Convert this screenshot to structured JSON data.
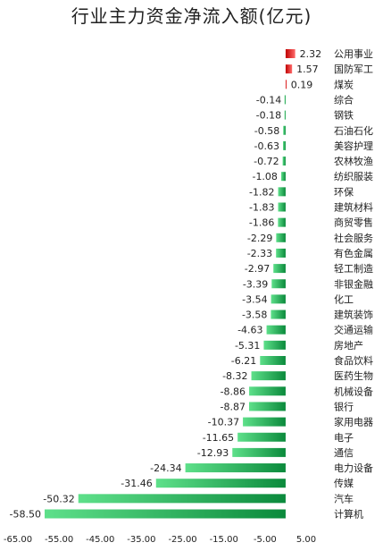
{
  "chart_data": {
    "type": "bar",
    "orientation": "horizontal",
    "title": "行业主力资金净流入额(亿元)",
    "xlabel": "",
    "ylabel": "",
    "xlim": [
      -65,
      5
    ],
    "x_ticks": [
      -65,
      -55,
      -45,
      -35,
      -25,
      -15,
      -5,
      5
    ],
    "x_tick_labels": [
      "-65.00",
      "-55.00",
      "-45.00",
      "-35.00",
      "-25.00",
      "-15.00",
      "-5.00",
      "5.00"
    ],
    "grid": false,
    "legend": "none",
    "categories": [
      "公用事业",
      "国防军工",
      "煤炭",
      "综合",
      "钢铁",
      "石油石化",
      "美容护理",
      "农林牧渔",
      "纺织服装",
      "环保",
      "建筑材料",
      "商贸零售",
      "社会服务",
      "有色金属",
      "轻工制造",
      "非银金融",
      "化工",
      "建筑装饰",
      "交通运输",
      "房地产",
      "食品饮料",
      "医药生物",
      "机械设备",
      "银行",
      "家用电器",
      "电子",
      "通信",
      "电力设备",
      "传媒",
      "汽车",
      "计算机"
    ],
    "values": [
      2.32,
      1.57,
      0.19,
      -0.14,
      -0.18,
      -0.58,
      -0.63,
      -0.72,
      -1.08,
      -1.82,
      -1.83,
      -1.86,
      -2.29,
      -2.33,
      -2.97,
      -3.39,
      -3.54,
      -3.58,
      -4.63,
      -5.31,
      -6.21,
      -8.32,
      -8.86,
      -8.87,
      -10.37,
      -11.65,
      -12.93,
      -24.34,
      -31.46,
      -50.32,
      -58.5
    ],
    "value_labels": [
      "2.32",
      "1.57",
      "0.19",
      "-0.14",
      "-0.18",
      "-0.58",
      "-0.63",
      "-0.72",
      "-1.08",
      "-1.82",
      "-1.83",
      "-1.86",
      "-2.29",
      "-2.33",
      "-2.97",
      "-3.39",
      "-3.54",
      "-3.58",
      "-4.63",
      "-5.31",
      "-6.21",
      "-8.32",
      "-8.86",
      "-8.87",
      "-10.37",
      "-11.65",
      "-12.93",
      "-24.34",
      "-31.46",
      "-50.32",
      "-58.50"
    ],
    "colors": {
      "positive_dark": "#c00000",
      "positive_light": "#ff6b6b",
      "negative_dark": "#0b8a3c",
      "negative_light": "#5ee08a"
    }
  }
}
